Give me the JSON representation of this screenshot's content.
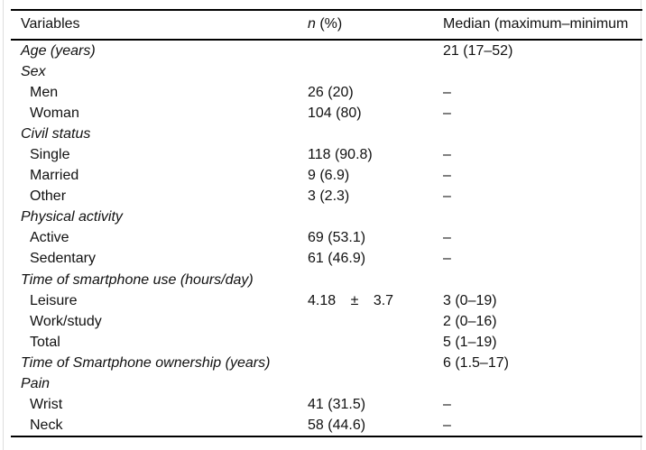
{
  "page": {
    "background_color": "#ffffff",
    "rule_color": "#000000",
    "edge_color": "#dedede",
    "text_color": "#111111"
  },
  "table": {
    "header": {
      "variables": "Variables",
      "n_symbol": "n",
      "n_rest": " (%)",
      "median": "Median (maximum–minimum"
    },
    "rows": [
      {
        "label": "Age (years)",
        "type": "category",
        "n": "",
        "median": "21 (17–52)"
      },
      {
        "label": "Sex",
        "type": "category",
        "n": "",
        "median": ""
      },
      {
        "label": "Men",
        "type": "sub",
        "n": "26 (20)",
        "median": "–"
      },
      {
        "label": "Woman",
        "type": "sub",
        "n": "104 (80)",
        "median": "–"
      },
      {
        "label": "Civil status",
        "type": "category",
        "n": "",
        "median": ""
      },
      {
        "label": "Single",
        "type": "sub",
        "n": "118 (90.8)",
        "median": "–"
      },
      {
        "label": "Married",
        "type": "sub",
        "n": "9 (6.9)",
        "median": "–"
      },
      {
        "label": "Other",
        "type": "sub",
        "n": "3 (2.3)",
        "median": "–"
      },
      {
        "label": "Physical activity",
        "type": "category",
        "n": "",
        "median": ""
      },
      {
        "label": "Active",
        "type": "sub",
        "n": "69 (53.1)",
        "median": "–"
      },
      {
        "label": "Sedentary",
        "type": "sub",
        "n": "61 (46.9)",
        "median": "–"
      },
      {
        "label": "Time of smartphone use (hours/day)",
        "type": "category",
        "n": "",
        "median": ""
      },
      {
        "label": "Leisure",
        "type": "sub",
        "n": "4.18 ± 3.7",
        "n_spread": true,
        "median": "3 (0–19)"
      },
      {
        "label": "Work/study",
        "type": "sub",
        "n": "",
        "median": "2 (0–16)"
      },
      {
        "label": "Total",
        "type": "sub",
        "n": "",
        "median": "5 (1–19)"
      },
      {
        "label": "Time of Smartphone ownership (years)",
        "type": "category",
        "n": "",
        "median": "6 (1.5–17)"
      },
      {
        "label": "Pain",
        "type": "category",
        "n": "",
        "median": ""
      },
      {
        "label": "Wrist",
        "type": "sub",
        "n": "41 (31.5)",
        "median": "–"
      },
      {
        "label": "Neck",
        "type": "sub",
        "n": "58 (44.6)",
        "median": "–"
      }
    ]
  }
}
